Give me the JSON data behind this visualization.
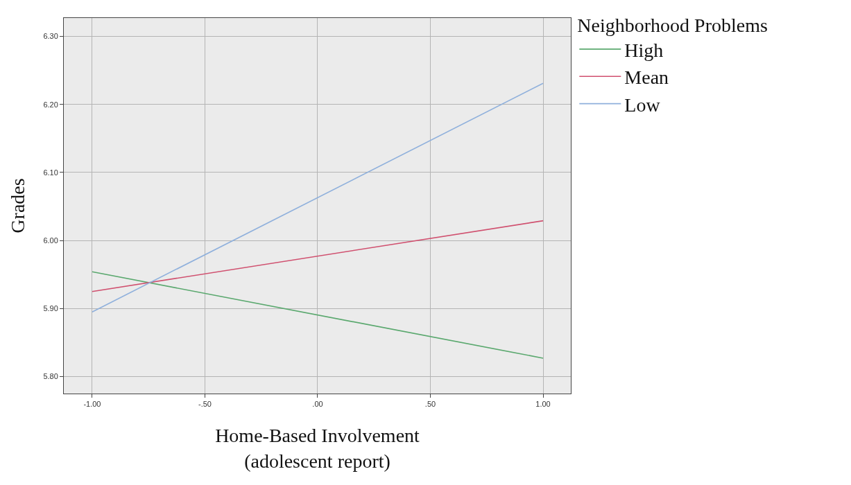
{
  "chart_data": {
    "type": "line",
    "xlabel": "Home-Based Involvement\n(adolescent report)",
    "ylabel": "Grades",
    "legend_title": "Neighborhood Problems",
    "x": [
      -1,
      1
    ],
    "series": [
      {
        "name": "High",
        "color": "#5aa86e",
        "values": [
          5.954,
          5.827
        ]
      },
      {
        "name": "Mean",
        "color": "#d0506f",
        "values": [
          5.925,
          6.029
        ]
      },
      {
        "name": "Low",
        "color": "#8fb0dc",
        "values": [
          5.895,
          6.231
        ]
      }
    ],
    "xlim": [
      -1.126,
      1.123
    ],
    "ylim": [
      5.775,
      6.327
    ],
    "xticks": [
      {
        "value": -1,
        "label": "-1.00"
      },
      {
        "value": -0.5,
        "label": "-.50"
      },
      {
        "value": 0,
        "label": ".00"
      },
      {
        "value": 0.5,
        "label": ".50"
      },
      {
        "value": 1,
        "label": "1.00"
      }
    ],
    "yticks": [
      {
        "value": 5.8,
        "label": "5.80"
      },
      {
        "value": 5.9,
        "label": "5.90"
      },
      {
        "value": 6,
        "label": "6.00"
      },
      {
        "value": 6.1,
        "label": "6.10"
      },
      {
        "value": 6.2,
        "label": "6.20"
      },
      {
        "value": 6.3,
        "label": "6.30"
      }
    ],
    "grid": true,
    "legend": "top right",
    "marker": "none",
    "line_style": "solid"
  }
}
